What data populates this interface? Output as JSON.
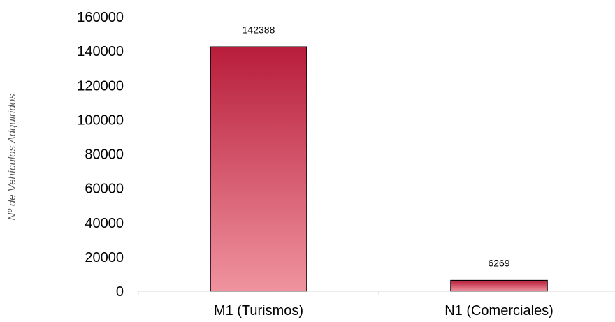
{
  "chart_data": {
    "type": "bar",
    "categories": [
      "M1 (Turismos)",
      "N1 (Comerciales)"
    ],
    "values": [
      142388,
      6269
    ],
    "data_labels": [
      "142388",
      "6269"
    ],
    "ylabel": "Nº de Vehículos Adquiridos",
    "ylim": [
      0,
      160000
    ],
    "yticks": [
      0,
      20000,
      40000,
      60000,
      80000,
      100000,
      120000,
      140000,
      160000
    ],
    "grid": false,
    "legend": "none",
    "colors": {
      "bar_top": "#b81d3a",
      "bar_bottom": "#f0939f",
      "bar_border": "#000000",
      "axis": "#d9d9d9"
    }
  }
}
